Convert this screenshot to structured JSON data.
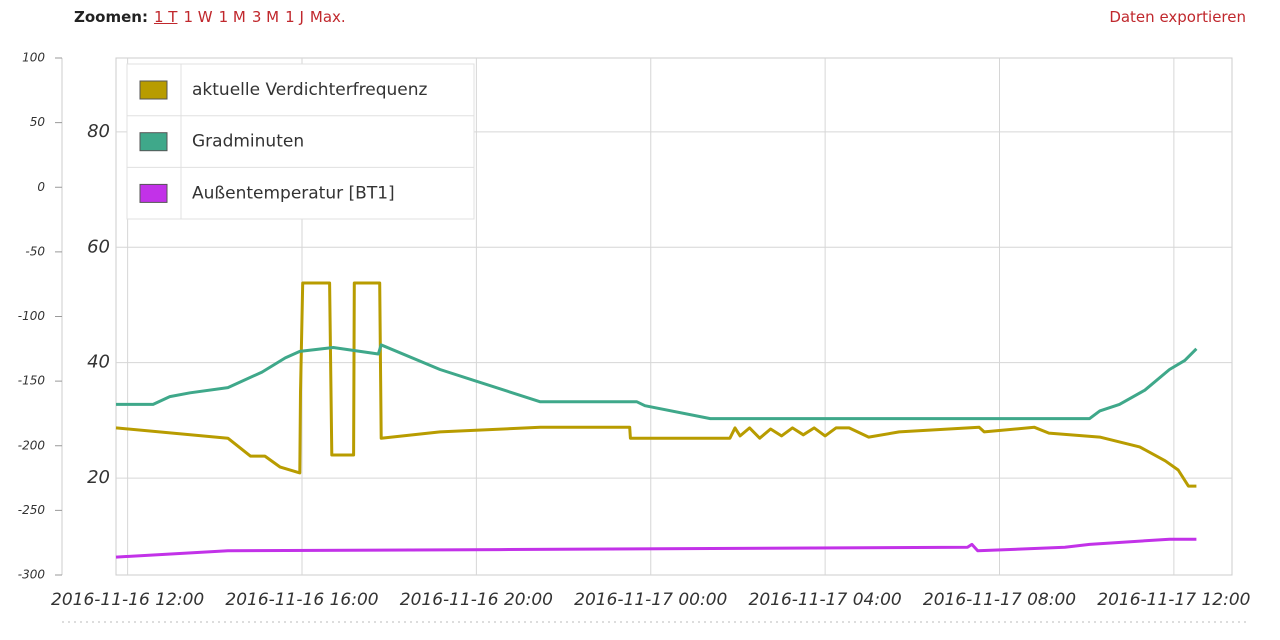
{
  "header": {
    "zoom_label": "Zoomen:",
    "zoom_options": [
      "1 T",
      "1 W",
      "1 M",
      "3 M",
      "1 J",
      "Max."
    ],
    "export": "Daten exportieren"
  },
  "chart_data": {
    "type": "line",
    "xlim": [
      "2016-11-16 11:44",
      "2016-11-17 13:20"
    ],
    "xticks": [
      "2016-11-16 12:00",
      "2016-11-16 16:00",
      "2016-11-16 20:00",
      "2016-11-17 00:00",
      "2016-11-17 04:00",
      "2016-11-17 08:00",
      "2016-11-17 12:00"
    ],
    "ylim": [
      3.2,
      92.8
    ],
    "yticks": [
      20,
      40,
      60,
      80
    ],
    "y2lim": [
      -300,
      100
    ],
    "y2ticks": [
      -300,
      -250,
      -200,
      -150,
      -100,
      -50,
      0,
      50,
      100
    ],
    "grid": true,
    "legend": "top-left",
    "series": [
      {
        "name": "aktuelle Verdichterfrequenz",
        "color": "#b89c00",
        "x": [
          "2016-11-16 11:44",
          "2016-11-16 14:18",
          "2016-11-16 14:49",
          "2016-11-16 15:09",
          "2016-11-16 15:30",
          "2016-11-16 15:57",
          "2016-11-16 15:58",
          "2016-11-16 16:01",
          "2016-11-16 16:38",
          "2016-11-16 16:41",
          "2016-11-16 17:11",
          "2016-11-16 17:12",
          "2016-11-16 17:47",
          "2016-11-16 17:49",
          "2016-11-16 19:10",
          "2016-11-16 21:28",
          "2016-11-16 23:31",
          "2016-11-16 23:32",
          "2016-11-17 01:49",
          "2016-11-17 01:56",
          "2016-11-17 02:03",
          "2016-11-17 02:16",
          "2016-11-17 02:30",
          "2016-11-17 02:45",
          "2016-11-17 03:00",
          "2016-11-17 03:15",
          "2016-11-17 03:30",
          "2016-11-17 03:45",
          "2016-11-17 04:00",
          "2016-11-17 04:15",
          "2016-11-17 04:33",
          "2016-11-17 05:00",
          "2016-11-17 05:42",
          "2016-11-17 07:32",
          "2016-11-17 07:39",
          "2016-11-17 08:48",
          "2016-11-17 09:08",
          "2016-11-17 10:18",
          "2016-11-17 11:13",
          "2016-11-17 11:48",
          "2016-11-17 12:06",
          "2016-11-17 12:20",
          "2016-11-17 12:31"
        ],
        "values": [
          28.7,
          26.9,
          23.8,
          23.8,
          21.9,
          20.9,
          34.9,
          53.8,
          53.8,
          24.0,
          24.0,
          53.8,
          53.8,
          26.9,
          28.0,
          28.8,
          28.8,
          26.9,
          26.9,
          28.7,
          27.3,
          28.7,
          26.9,
          28.5,
          27.3,
          28.7,
          27.5,
          28.7,
          27.3,
          28.7,
          28.7,
          27.1,
          28.0,
          28.8,
          28.0,
          28.8,
          27.8,
          27.1,
          25.4,
          23.0,
          21.4,
          18.6,
          18.6
        ]
      },
      {
        "name": "Gradminuten",
        "color": "#3fa88a",
        "axis": "y2",
        "x": [
          "2016-11-16 11:44",
          "2016-11-16 12:35",
          "2016-11-16 12:58",
          "2016-11-16 13:26",
          "2016-11-16 14:18",
          "2016-11-16 15:05",
          "2016-11-16 15:37",
          "2016-11-16 15:57",
          "2016-11-16 16:43",
          "2016-11-16 17:45",
          "2016-11-16 17:49",
          "2016-11-16 19:10",
          "2016-11-16 21:28",
          "2016-11-16 23:41",
          "2016-11-16 23:52",
          "2016-11-17 01:22",
          "2016-11-17 10:04",
          "2016-11-17 10:18",
          "2016-11-17 10:45",
          "2016-11-17 11:20",
          "2016-11-17 11:54",
          "2016-11-17 12:15",
          "2016-11-17 12:31"
        ],
        "values": [
          -168,
          -168,
          -162,
          -159,
          -155,
          -143,
          -132,
          -127,
          -124,
          -129,
          -122,
          -141,
          -166,
          -166,
          -169,
          -179,
          -179,
          -173,
          -168,
          -157,
          -141,
          -134,
          -125
        ]
      },
      {
        "name": "Außentemperatur [BT1]",
        "color": "#c232e8",
        "x": [
          "2016-11-16 11:44",
          "2016-11-16 14:18",
          "2016-11-16 20:32",
          "2016-11-17 07:16",
          "2016-11-17 07:22",
          "2016-11-17 07:30",
          "2016-11-17 09:30",
          "2016-11-17 10:04",
          "2016-11-17 11:54",
          "2016-11-17 12:31"
        ],
        "values": [
          6.3,
          7.4,
          7.6,
          8.0,
          8.5,
          7.4,
          8.0,
          8.5,
          9.4,
          9.4
        ]
      }
    ]
  }
}
